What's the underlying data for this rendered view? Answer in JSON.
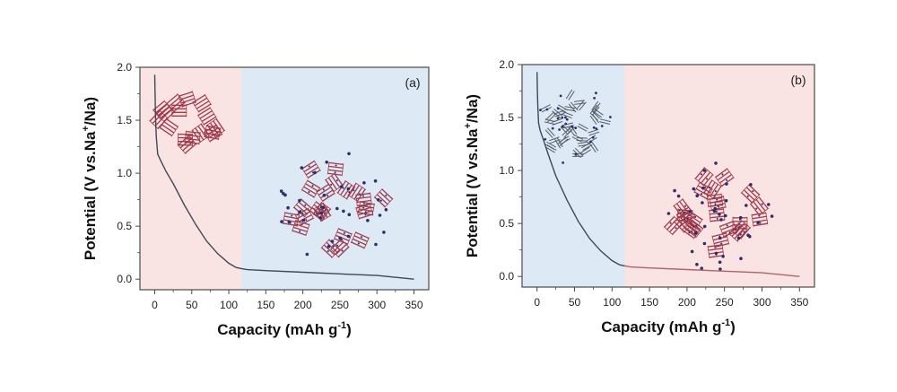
{
  "figure": {
    "background": "#ffffff"
  },
  "chart_data": [
    {
      "type": "line",
      "panel_label": "(a)",
      "xlabel": "Capacity (mAh g",
      "xlabel_sup": "-1",
      "xlabel_close": ")",
      "ylabel_pre": "Potential (V vs.Na",
      "ylabel_sup": "+",
      "ylabel_post": "/Na)",
      "xlim": [
        -20,
        370
      ],
      "ylim": [
        -0.1,
        2.0
      ],
      "xticks": [
        0,
        50,
        100,
        150,
        200,
        250,
        300,
        350
      ],
      "yticks": [
        0.0,
        0.5,
        1.0,
        1.5,
        2.0
      ],
      "ytick_labels": [
        "0.0",
        "0.5",
        "1.0",
        "1.5",
        "2.0"
      ],
      "regions": [
        {
          "x_range": [
            -20,
            117
          ],
          "color": "#fae3e3"
        },
        {
          "x_range": [
            117,
            370
          ],
          "color": "#ddeaf5"
        }
      ],
      "series": [
        {
          "color": "#3c4a57",
          "x": [
            0,
            0.5,
            1,
            2,
            4,
            8,
            15,
            25,
            40,
            55,
            70,
            85,
            100,
            110,
            117,
            125,
            150,
            200,
            250,
            300,
            350
          ],
          "y": [
            1.93,
            1.75,
            1.55,
            1.35,
            1.18,
            1.12,
            1.02,
            0.9,
            0.7,
            0.52,
            0.36,
            0.24,
            0.15,
            0.11,
            0.1,
            0.09,
            0.08,
            0.065,
            0.05,
            0.035,
            0.0
          ]
        }
      ],
      "inset_colors": {
        "layer": "#a03a4a",
        "dot": "#2b2f6b"
      }
    },
    {
      "type": "line",
      "panel_label": "(b)",
      "xlabel": "Capacity (mAh g",
      "xlabel_sup": "-1",
      "xlabel_close": ")",
      "ylabel_pre": "Potential (V vs.Na",
      "ylabel_sup": "+",
      "ylabel_post": "/Na)",
      "xlim": [
        -20,
        370
      ],
      "ylim": [
        -0.1,
        2.0
      ],
      "xticks": [
        0,
        50,
        100,
        150,
        200,
        250,
        300,
        350
      ],
      "yticks": [
        0.0,
        0.5,
        1.0,
        1.5,
        2.0
      ],
      "ytick_labels": [
        "0.0",
        "0.5",
        "1.0",
        "1.5",
        "2.0"
      ],
      "regions": [
        {
          "x_range": [
            -20,
            117
          ],
          "color": "#ddeaf5"
        },
        {
          "x_range": [
            117,
            370
          ],
          "color": "#fae3e3"
        }
      ],
      "series": [
        {
          "color": "#3c4a57",
          "x": [
            0,
            0.5,
            1,
            2,
            4,
            8,
            15,
            25,
            40,
            55,
            70,
            85,
            100,
            110,
            117
          ],
          "y": [
            1.93,
            1.75,
            1.6,
            1.45,
            1.38,
            1.3,
            1.15,
            0.95,
            0.72,
            0.52,
            0.36,
            0.24,
            0.15,
            0.11,
            0.1
          ]
        },
        {
          "color": "#b0626e",
          "x": [
            117,
            125,
            150,
            200,
            250,
            300,
            350
          ],
          "y": [
            0.1,
            0.09,
            0.08,
            0.065,
            0.05,
            0.035,
            0.0
          ]
        }
      ],
      "inset_colors": {
        "layer": "#a03a4a",
        "dot": "#2b2f6b",
        "stick": "#555c66"
      }
    }
  ]
}
